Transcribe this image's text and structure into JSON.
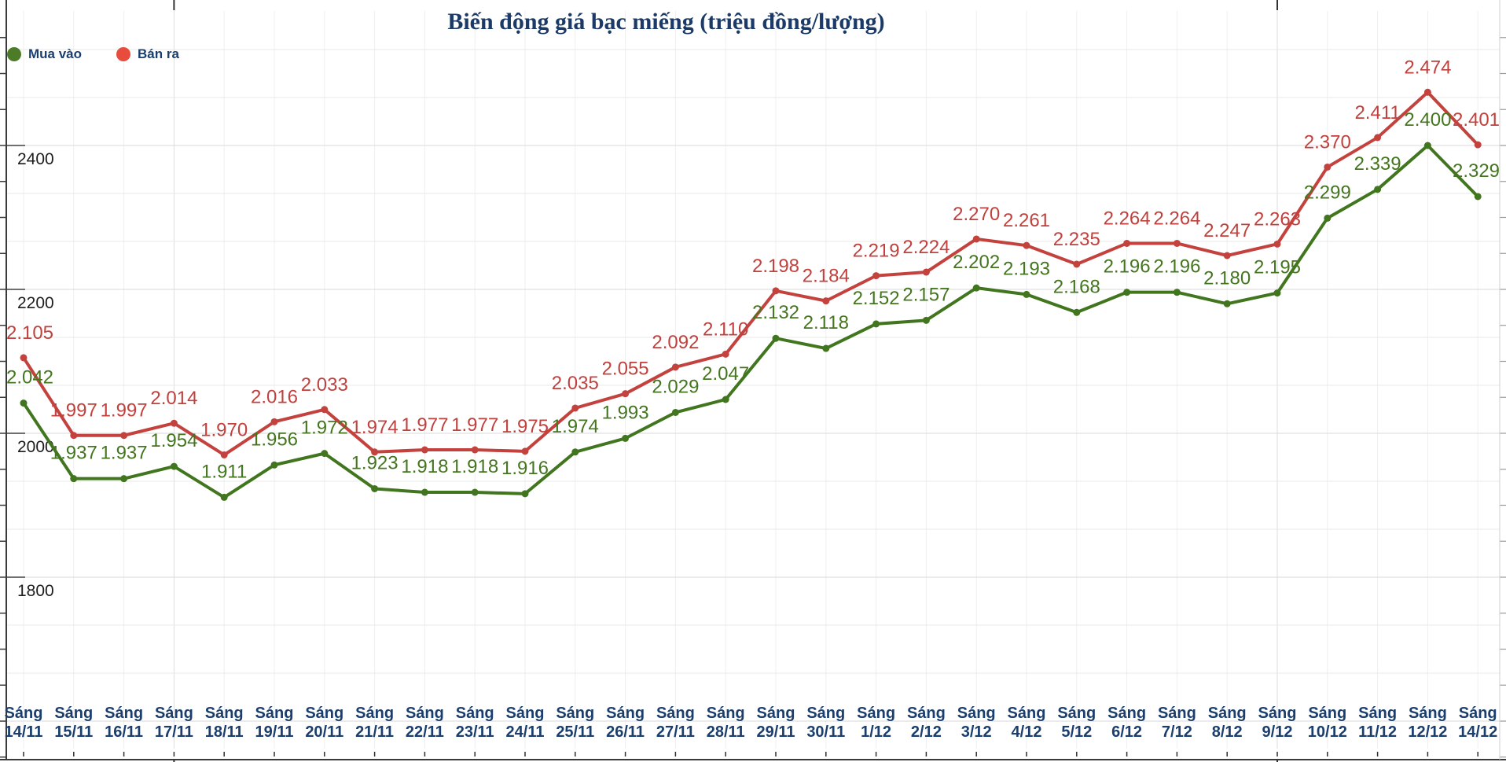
{
  "title": "Biến động giá bạc miếng (triệu đồng/lượng)",
  "legend": [
    {
      "key": "buy",
      "label": "Mua vào",
      "color": "#4c7c28"
    },
    {
      "key": "sell",
      "label": "Bán ra",
      "color": "#e74c3c"
    }
  ],
  "chart_data": {
    "type": "line",
    "title": "Biến động giá bạc miếng (triệu đồng/lượng)",
    "x_label_prefix": "Sáng",
    "categories": [
      "14/11",
      "15/11",
      "16/11",
      "17/11",
      "18/11",
      "19/11",
      "20/11",
      "21/11",
      "22/11",
      "23/11",
      "24/11",
      "25/11",
      "26/11",
      "27/11",
      "28/11",
      "29/11",
      "30/11",
      "1/12",
      "2/12",
      "3/12",
      "4/12",
      "5/12",
      "6/12",
      "7/12",
      "8/12",
      "9/12",
      "10/12",
      "11/12",
      "12/12",
      "14/12"
    ],
    "series": [
      {
        "name": "Bán ra",
        "key": "sell",
        "color": "#c4423e",
        "label_color": "#c0413d",
        "values": [
          2105,
          1997,
          1997,
          2014,
          1970,
          2016,
          2033,
          1974,
          1977,
          1977,
          1975,
          2035,
          2055,
          2092,
          2110,
          2198,
          2184,
          2219,
          2224,
          2270,
          2261,
          2235,
          2264,
          2264,
          2247,
          2263,
          2370,
          2411,
          2474,
          2401
        ]
      },
      {
        "name": "Mua vào",
        "key": "buy",
        "color": "#41761f",
        "label_color": "#44761f",
        "values": [
          2042,
          1937,
          1937,
          1954,
          1911,
          1956,
          1972,
          1923,
          1918,
          1918,
          1916,
          1974,
          1993,
          2029,
          2047,
          2132,
          2118,
          2152,
          2157,
          2202,
          2193,
          2168,
          2196,
          2196,
          2180,
          2195,
          2299,
          2339,
          2400,
          2329
        ]
      }
    ],
    "y_axis": {
      "ticks": [
        2400,
        2200,
        2000,
        1800
      ],
      "range": [
        1545,
        2600
      ],
      "unit": "nghìn đồng"
    },
    "data_label_format": "value/1000, 3 decimals (triệu đồng)",
    "legend_position": "top-left",
    "grid": true
  }
}
